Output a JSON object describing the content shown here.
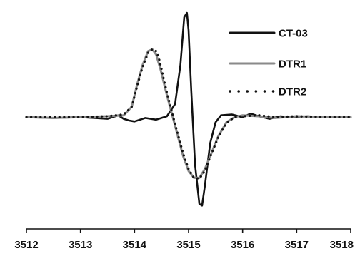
{
  "chart_data": {
    "type": "line",
    "title": "",
    "xlabel": "",
    "ylabel": "",
    "xlim": [
      3512,
      3518
    ],
    "ylim": [
      -1.05,
      1.25
    ],
    "x_ticks": [
      3512,
      3513,
      3514,
      3515,
      3516,
      3517,
      3518
    ],
    "x_tick_labels": [
      "3512",
      "3513",
      "3514",
      "3515",
      "3516",
      "3517",
      "3518"
    ],
    "y_axis_visible": false,
    "grid": false,
    "legend_position": "top-right",
    "series": [
      {
        "name": "CT-03",
        "color": "#111111",
        "style": "solid",
        "x": [
          3512.0,
          3512.5,
          3513.0,
          3513.5,
          3513.7,
          3513.8,
          3513.9,
          3514.0,
          3514.2,
          3514.4,
          3514.6,
          3514.75,
          3514.85,
          3514.92,
          3514.97,
          3515.0,
          3515.05,
          3515.12,
          3515.2,
          3515.25,
          3515.3,
          3515.4,
          3515.5,
          3515.6,
          3515.8,
          3516.0,
          3516.15,
          3516.3,
          3516.5,
          3516.7,
          3516.9,
          3517.2,
          3517.5,
          3518.0
        ],
        "y": [
          0.0,
          -0.01,
          0.0,
          -0.02,
          0.02,
          -0.02,
          -0.04,
          -0.05,
          -0.01,
          -0.03,
          0.01,
          0.15,
          0.6,
          1.15,
          1.2,
          1.0,
          0.3,
          -0.55,
          -1.0,
          -1.02,
          -0.8,
          -0.3,
          -0.06,
          0.02,
          0.03,
          0.0,
          0.04,
          0.01,
          -0.02,
          0.01,
          0.0,
          0.01,
          0.0,
          0.0
        ]
      },
      {
        "name": "DTR1",
        "color": "#8a8a8a",
        "style": "solid",
        "x": [
          3512.0,
          3512.5,
          3513.0,
          3513.5,
          3513.8,
          3513.95,
          3514.05,
          3514.15,
          3514.25,
          3514.33,
          3514.4,
          3514.48,
          3514.6,
          3514.75,
          3514.9,
          3515.0,
          3515.1,
          3515.2,
          3515.3,
          3515.4,
          3515.55,
          3515.7,
          3515.85,
          3516.0,
          3516.3,
          3516.6,
          3517.0,
          3517.5,
          3518.0
        ],
        "y": [
          0.0,
          -0.01,
          0.0,
          0.01,
          0.02,
          0.12,
          0.38,
          0.6,
          0.76,
          0.78,
          0.72,
          0.55,
          0.25,
          -0.1,
          -0.45,
          -0.62,
          -0.7,
          -0.7,
          -0.6,
          -0.45,
          -0.22,
          -0.06,
          0.0,
          0.02,
          0.01,
          -0.01,
          0.01,
          0.0,
          0.0
        ]
      },
      {
        "name": "DTR2",
        "color": "#111111",
        "style": "dotted",
        "x": [
          3512.0,
          3512.5,
          3513.0,
          3513.5,
          3513.8,
          3513.95,
          3514.05,
          3514.15,
          3514.25,
          3514.33,
          3514.4,
          3514.45,
          3514.5,
          3514.6,
          3514.75,
          3514.9,
          3515.0,
          3515.1,
          3515.2,
          3515.3,
          3515.4,
          3515.55,
          3515.7,
          3515.85,
          3516.0,
          3516.3,
          3516.6,
          3517.0,
          3517.5,
          3518.0
        ],
        "y": [
          0.0,
          0.0,
          0.0,
          0.01,
          0.03,
          0.12,
          0.36,
          0.58,
          0.74,
          0.78,
          0.76,
          0.68,
          0.55,
          0.28,
          -0.08,
          -0.42,
          -0.6,
          -0.7,
          -0.71,
          -0.62,
          -0.46,
          -0.23,
          -0.07,
          0.0,
          0.01,
          0.02,
          0.0,
          0.01,
          0.0,
          0.0
        ]
      }
    ]
  }
}
